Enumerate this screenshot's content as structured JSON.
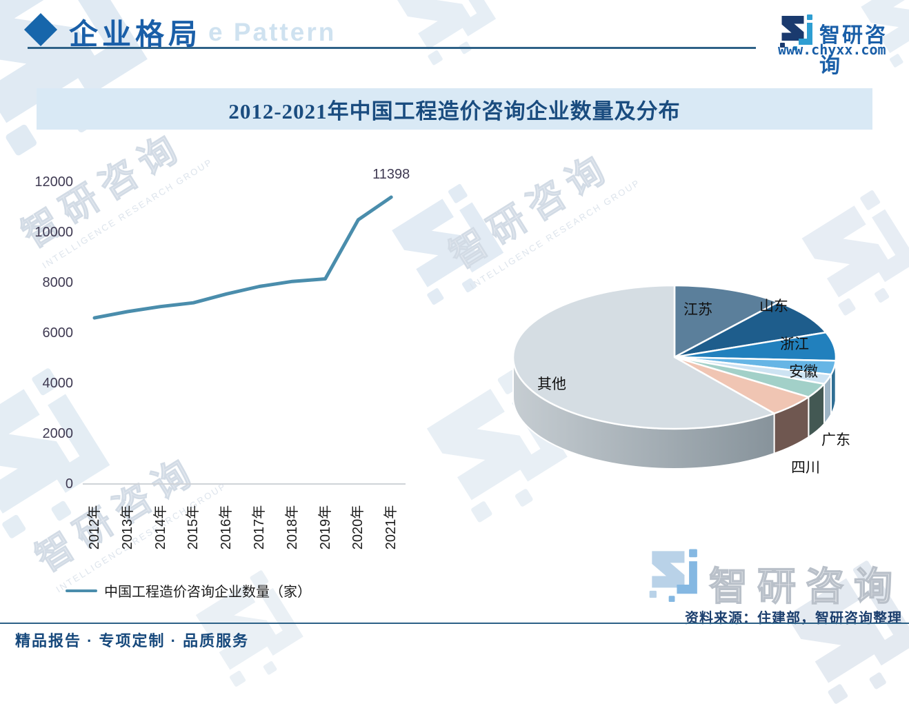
{
  "header": {
    "section_title": "企业格局",
    "section_title_watermark": "e Pattern",
    "brand_name": "智研咨询",
    "brand_site": "www.chyxx.com"
  },
  "title_bar": {
    "text": "2012-2021年中国工程造价咨询企业数量及分布"
  },
  "chart_data": [
    {
      "type": "line",
      "title": "2012-2021年中国工程造价咨询企业数量",
      "categories": [
        "2012年",
        "2013年",
        "2014年",
        "2015年",
        "2016年",
        "2017年",
        "2018年",
        "2019年",
        "2020年",
        "2021年"
      ],
      "series": [
        {
          "name": "中国工程造价咨询企业数量（家）",
          "values": [
            6600,
            6850,
            7050,
            7200,
            7550,
            7850,
            8050,
            8150,
            10500,
            11398
          ]
        }
      ],
      "ylim": [
        0,
        12000
      ],
      "yticks": [
        0,
        2000,
        4000,
        6000,
        8000,
        10000,
        12000
      ],
      "grid": false,
      "legend_position": "bottom",
      "annotation": "11398",
      "line_color": "#4a8dac"
    },
    {
      "type": "pie",
      "title": "中国工程造价咨询企业分布",
      "labels": [
        "江苏",
        "山东",
        "浙江",
        "安徽",
        "",
        "广东",
        "四川",
        "其他"
      ],
      "values": [
        11.1,
        8.3,
        6.4,
        3.1,
        2.2,
        3.3,
        5.0,
        60.6
      ],
      "colors": [
        "#5b7f9b",
        "#1e5d8c",
        "#2180bd",
        "#66b5e5",
        "#cde3f2",
        "#a2d0c8",
        "#f0c5b3",
        "#d5dde3"
      ],
      "side_colors": [
        "#3e5a70",
        "#14425f",
        "#14507a",
        "#2f6e94",
        "#9db4c4",
        "#435853",
        "#6f5750",
        "#a0aab1"
      ],
      "effect": "3d",
      "legend_position": "none"
    }
  ],
  "source_note": "资料来源：住建部，智研咨询整理",
  "footer": {
    "text": "精品报告 · 专项定制 · 品质服务"
  },
  "watermark": {
    "brand": "智研咨询",
    "caption": "INTELLIGENCE RESEARCH GROUP"
  },
  "colors": {
    "accent_blue": "#1a5fa8",
    "title_bar_bg": "#d9e9f5",
    "line_series": "#4a8dac"
  }
}
